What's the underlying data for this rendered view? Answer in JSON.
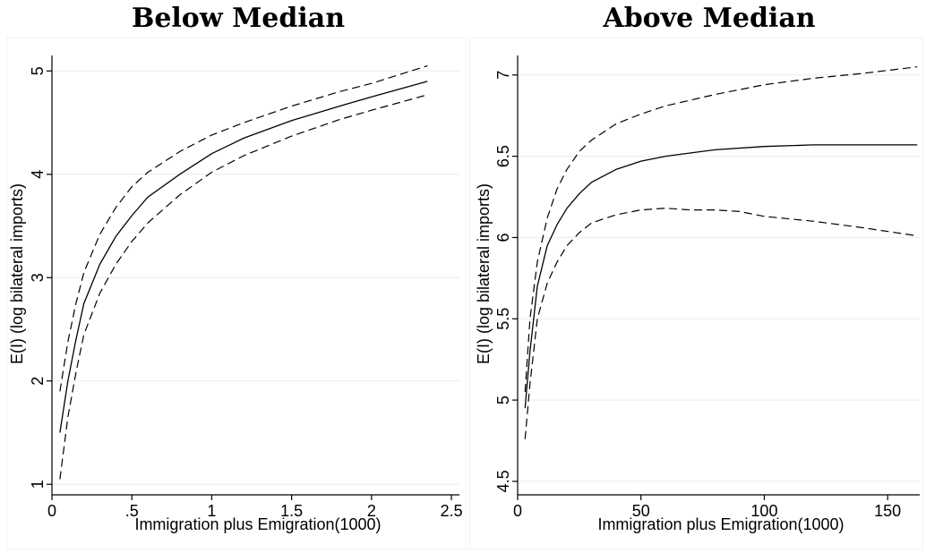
{
  "chart_data": [
    {
      "type": "line",
      "title": "Below Median",
      "xlabel": "Immigration plus Emigration(1000)",
      "ylabel": "E(I) (log bilateral imports)",
      "xlim": [
        0,
        2.55
      ],
      "ylim": [
        0.95,
        5.15
      ],
      "xticks": [
        0,
        0.5,
        1,
        1.5,
        2,
        2.5
      ],
      "xtick_labels": [
        "0",
        ".5",
        "1",
        "1.5",
        "2",
        "2.5"
      ],
      "yticks": [
        1,
        2,
        3,
        4,
        5
      ],
      "ytick_labels": [
        "1",
        "2",
        "3",
        "4",
        "5"
      ],
      "grid": true,
      "series": [
        {
          "style": "solid",
          "x": [
            0.05,
            0.1,
            0.15,
            0.2,
            0.3,
            0.4,
            0.5,
            0.6,
            0.8,
            1.0,
            1.2,
            1.5,
            1.8,
            2.0,
            2.35
          ],
          "y": [
            1.5,
            2.0,
            2.4,
            2.75,
            3.13,
            3.4,
            3.6,
            3.78,
            4.0,
            4.2,
            4.35,
            4.52,
            4.66,
            4.75,
            4.9
          ]
        },
        {
          "style": "dashed",
          "x": [
            0.05,
            0.1,
            0.15,
            0.2,
            0.3,
            0.4,
            0.5,
            0.6,
            0.8,
            1.0,
            1.2,
            1.5,
            1.8,
            2.0,
            2.35
          ],
          "y": [
            1.9,
            2.38,
            2.75,
            3.05,
            3.42,
            3.68,
            3.88,
            4.02,
            4.22,
            4.38,
            4.5,
            4.66,
            4.8,
            4.88,
            5.05
          ]
        },
        {
          "style": "dashed",
          "x": [
            0.05,
            0.1,
            0.15,
            0.2,
            0.3,
            0.4,
            0.5,
            0.6,
            0.8,
            1.0,
            1.2,
            1.5,
            1.8,
            2.0,
            2.35
          ],
          "y": [
            1.05,
            1.65,
            2.08,
            2.45,
            2.85,
            3.13,
            3.35,
            3.53,
            3.8,
            4.02,
            4.18,
            4.37,
            4.53,
            4.62,
            4.77
          ]
        }
      ]
    },
    {
      "type": "line",
      "title": "Above Median",
      "xlabel": "Immigration plus Emigration(1000)",
      "ylabel": "E(I) (log bilateral imports)",
      "xlim": [
        0,
        163
      ],
      "ylim": [
        4.45,
        7.12
      ],
      "xticks": [
        0,
        50,
        100,
        150
      ],
      "xtick_labels": [
        "0",
        "50",
        "100",
        "150"
      ],
      "yticks": [
        4.5,
        5,
        5.5,
        6,
        6.5,
        7
      ],
      "ytick_labels": [
        "4.5",
        "5",
        "5.5",
        "6",
        "6.5",
        "7"
      ],
      "grid": true,
      "series": [
        {
          "style": "solid",
          "x": [
            3,
            5,
            8,
            12,
            16,
            20,
            25,
            30,
            40,
            50,
            60,
            80,
            100,
            120,
            140,
            162
          ],
          "y": [
            4.95,
            5.3,
            5.7,
            5.95,
            6.08,
            6.18,
            6.27,
            6.34,
            6.42,
            6.47,
            6.5,
            6.54,
            6.56,
            6.57,
            6.57,
            6.57
          ]
        },
        {
          "style": "dashed",
          "x": [
            3,
            5,
            8,
            12,
            16,
            20,
            25,
            30,
            40,
            50,
            60,
            80,
            100,
            120,
            140,
            162
          ],
          "y": [
            5.05,
            5.5,
            5.85,
            6.12,
            6.3,
            6.42,
            6.53,
            6.6,
            6.7,
            6.76,
            6.81,
            6.88,
            6.94,
            6.98,
            7.01,
            7.05
          ]
        },
        {
          "style": "dashed",
          "x": [
            3,
            5,
            8,
            12,
            16,
            20,
            25,
            30,
            40,
            50,
            60,
            70,
            80,
            90,
            100,
            120,
            140,
            162
          ],
          "y": [
            4.76,
            5.1,
            5.5,
            5.72,
            5.85,
            5.95,
            6.03,
            6.09,
            6.14,
            6.17,
            6.18,
            6.17,
            6.17,
            6.16,
            6.13,
            6.1,
            6.06,
            6.01
          ]
        }
      ]
    }
  ]
}
